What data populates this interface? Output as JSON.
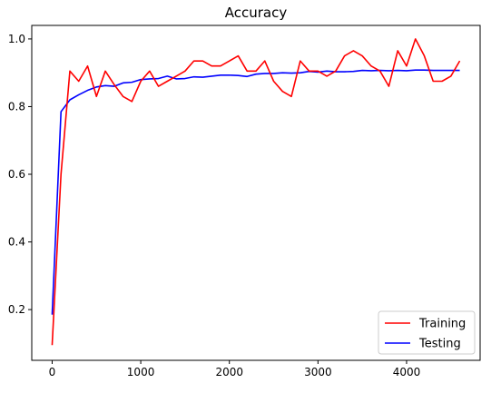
{
  "chart_data": {
    "type": "line",
    "title": "Accuracy",
    "xlabel": "",
    "ylabel": "",
    "xlim": [
      -230,
      4830
    ],
    "ylim": [
      0.05,
      1.04
    ],
    "x_ticks": [
      0,
      1000,
      2000,
      3000,
      4000
    ],
    "y_ticks": [
      0.2,
      0.4,
      0.6,
      0.8,
      1.0
    ],
    "x_tick_labels": [
      "0",
      "1000",
      "2000",
      "3000",
      "4000"
    ],
    "y_tick_labels": [
      "0.2",
      "0.4",
      "0.6",
      "0.8",
      "1.0"
    ],
    "grid": false,
    "legend_position": "lower right",
    "series": [
      {
        "name": "Training",
        "color": "#ff0000",
        "x": [
          0,
          100,
          200,
          300,
          400,
          500,
          600,
          700,
          800,
          900,
          1000,
          1100,
          1200,
          1300,
          1400,
          1500,
          1600,
          1700,
          1800,
          1900,
          2000,
          2100,
          2200,
          2300,
          2400,
          2500,
          2600,
          2700,
          2800,
          2900,
          3000,
          3100,
          3200,
          3300,
          3400,
          3500,
          3600,
          3700,
          3800,
          3900,
          4000,
          4100,
          4200,
          4300,
          4400,
          4500,
          4600
        ],
        "values": [
          0.095,
          0.6,
          0.905,
          0.875,
          0.92,
          0.83,
          0.905,
          0.865,
          0.83,
          0.815,
          0.875,
          0.905,
          0.86,
          0.875,
          0.89,
          0.905,
          0.935,
          0.935,
          0.92,
          0.92,
          0.935,
          0.95,
          0.905,
          0.905,
          0.935,
          0.875,
          0.845,
          0.83,
          0.935,
          0.905,
          0.905,
          0.89,
          0.905,
          0.95,
          0.965,
          0.95,
          0.92,
          0.905,
          0.86,
          0.965,
          0.92,
          1.0,
          0.95,
          0.875,
          0.875,
          0.89,
          0.935
        ]
      },
      {
        "name": "Testing",
        "color": "#0000ff",
        "x": [
          0,
          100,
          200,
          300,
          400,
          500,
          600,
          700,
          800,
          900,
          1000,
          1100,
          1200,
          1300,
          1400,
          1500,
          1600,
          1700,
          1800,
          1900,
          2000,
          2100,
          2200,
          2300,
          2400,
          2500,
          2600,
          2700,
          2800,
          2900,
          3000,
          3100,
          3200,
          3300,
          3400,
          3500,
          3600,
          3700,
          3800,
          3900,
          4000,
          4100,
          4200,
          4300,
          4400,
          4500,
          4600
        ],
        "values": [
          0.185,
          0.785,
          0.82,
          0.835,
          0.848,
          0.858,
          0.862,
          0.86,
          0.87,
          0.872,
          0.88,
          0.882,
          0.883,
          0.89,
          0.882,
          0.883,
          0.888,
          0.887,
          0.89,
          0.893,
          0.893,
          0.892,
          0.889,
          0.896,
          0.898,
          0.898,
          0.9,
          0.899,
          0.9,
          0.904,
          0.902,
          0.905,
          0.903,
          0.903,
          0.904,
          0.907,
          0.906,
          0.907,
          0.906,
          0.907,
          0.906,
          0.908,
          0.908,
          0.907,
          0.907,
          0.907,
          0.907
        ]
      }
    ]
  }
}
